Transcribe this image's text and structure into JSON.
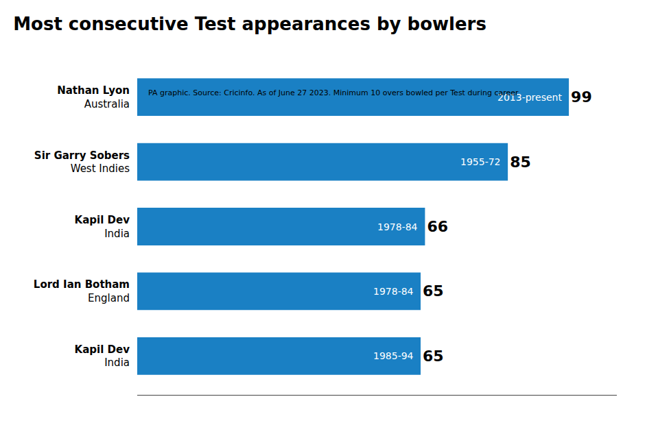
{
  "chart_data": {
    "type": "bar",
    "orientation": "horizontal",
    "title": "Most consecutive Test appearances by bowlers",
    "categories": [
      "Nathan Lyon\nAustralia",
      "Sir Garry Sobers\nWest Indies",
      "Kapil Dev\nIndia",
      "Lord Ian Botham\nEngland",
      "Kapil Dev\nIndia"
    ],
    "values": [
      99,
      85,
      66,
      65,
      65
    ],
    "annotations": [
      "2013-present",
      "1955-72",
      "1978-84",
      "1978-84",
      "1985-94"
    ],
    "color": "#1a80c4",
    "xlim": [
      0,
      110
    ],
    "data_labels": true,
    "tick_labels": "y",
    "grid": false,
    "footnote": "PA graphic. Source: Cricinfo. As of June 27 2023. Minimum 10 overs bowled per Test during career"
  }
}
